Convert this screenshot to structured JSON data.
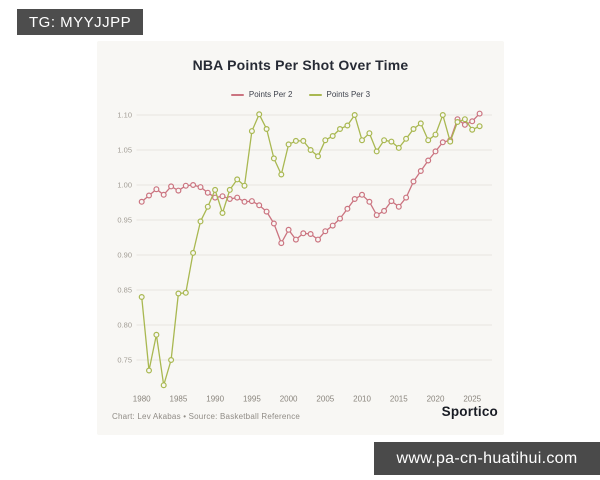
{
  "watermarks": {
    "top_left": "TG: MYYJJPP",
    "bottom_right": "www.pa-cn-huatihui.com"
  },
  "footer": {
    "credit": "Chart: Lev Akabas • Source: Basketball Reference",
    "brand": "Sportico"
  },
  "colors": {
    "points_per_2": "#cb7480",
    "points_per_3": "#a9b851",
    "card_background": "#f8f7f4",
    "gridline": "#e7e5df",
    "y_tick_label": "#a29d95",
    "x_tick_label": "#8a857d",
    "watermark_background": "#4a4a4a"
  },
  "chart_data": {
    "type": "line",
    "title": "NBA Points Per Shot Over Time",
    "xlabel": "",
    "ylabel": "",
    "grid": "horizontal",
    "legend_position": "top",
    "xlim": [
      1980,
      2026
    ],
    "ylim": [
      0.71,
      1.11
    ],
    "xticks": [
      1980,
      1985,
      1990,
      1995,
      2000,
      2005,
      2010,
      2015,
      2020,
      2025
    ],
    "yticks": [
      0.75,
      0.8,
      0.85,
      0.9,
      0.95,
      1.0,
      1.05,
      1.1
    ],
    "x": [
      1980,
      1981,
      1982,
      1983,
      1984,
      1985,
      1986,
      1987,
      1988,
      1989,
      1990,
      1991,
      1992,
      1993,
      1994,
      1995,
      1996,
      1997,
      1998,
      1999,
      2000,
      2001,
      2002,
      2003,
      2004,
      2005,
      2006,
      2007,
      2008,
      2009,
      2010,
      2011,
      2012,
      2013,
      2014,
      2015,
      2016,
      2017,
      2018,
      2019,
      2020,
      2021,
      2022,
      2023,
      2024,
      2025,
      2026
    ],
    "series": [
      {
        "name": "Points Per 2",
        "color": "#cb7480",
        "values": [
          0.976,
          0.985,
          0.994,
          0.986,
          0.998,
          0.992,
          0.999,
          1.0,
          0.997,
          0.989,
          0.982,
          0.984,
          0.98,
          0.982,
          0.976,
          0.977,
          0.971,
          0.962,
          0.945,
          0.917,
          0.936,
          0.922,
          0.931,
          0.93,
          0.922,
          0.934,
          0.942,
          0.952,
          0.966,
          0.98,
          0.986,
          0.976,
          0.957,
          0.963,
          0.977,
          0.969,
          0.982,
          1.005,
          1.02,
          1.035,
          1.048,
          1.061,
          1.064,
          1.094,
          1.086,
          1.091,
          1.102
        ]
      },
      {
        "name": "Points Per 3",
        "color": "#a9b851",
        "values": [
          0.84,
          0.735,
          0.786,
          0.714,
          0.75,
          0.845,
          0.846,
          0.903,
          0.948,
          0.969,
          0.993,
          0.96,
          0.993,
          1.008,
          0.999,
          1.077,
          1.101,
          1.08,
          1.038,
          1.015,
          1.058,
          1.063,
          1.063,
          1.05,
          1.041,
          1.064,
          1.07,
          1.08,
          1.085,
          1.1,
          1.064,
          1.074,
          1.048,
          1.064,
          1.062,
          1.053,
          1.066,
          1.08,
          1.088,
          1.064,
          1.072,
          1.1,
          1.062,
          1.09,
          1.094,
          1.079,
          1.084
        ]
      }
    ]
  }
}
